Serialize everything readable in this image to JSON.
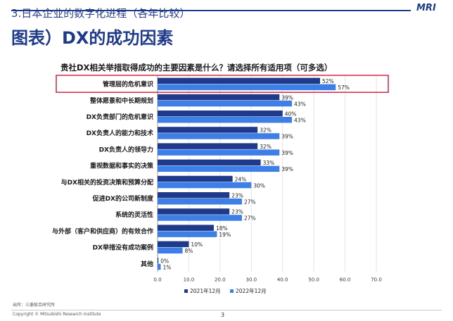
{
  "header": {
    "section_title": "3.日本企业的数字化进程（各年比较）",
    "page_title": "图表）DX的成功因素",
    "logo": "MRI"
  },
  "chart_data": {
    "type": "bar",
    "orientation": "horizontal",
    "title": "贵社DX相关举措取得成功的主要因素是什么？请选择所有适用项（可多选）",
    "categories": [
      "管理层的危机意识",
      "整体愿景和中长期规划",
      "DX负责部门的危机意识",
      "DX负责人的能力和技术",
      "DX负责人的领导力",
      "重视数据和事实的决策",
      "与DX相关的投资决策和预算分配",
      "促进DX的公司新制度",
      "系统的灵活性",
      "与外部（客户和供应商）的有效合作",
      "DX举措没有成功案例",
      "其他"
    ],
    "series": [
      {
        "name": "2021年12月",
        "color": "#1f3a8a",
        "values": [
          52,
          39,
          40,
          32,
          32,
          33,
          24,
          23,
          23,
          18,
          10,
          0
        ]
      },
      {
        "name": "2022年12月",
        "color": "#3d7fe6",
        "values": [
          57,
          43,
          43,
          39,
          39,
          39,
          30,
          27,
          27,
          19,
          8,
          1
        ]
      }
    ],
    "value_suffix": "%",
    "xlim": [
      0,
      70
    ],
    "xticks": [
      "0.0",
      "10.0",
      "20.0",
      "30.0",
      "40.0",
      "50.0",
      "60.0",
      "70.0"
    ],
    "legend_position": "bottom",
    "highlighted_category": "管理层的危机意识",
    "highlight_color": "#d6334f"
  },
  "footer": {
    "source": "出所：三菱総合研究所",
    "copyright": "Copyright © Mitsubishi Research Institute",
    "page_number": "3"
  }
}
